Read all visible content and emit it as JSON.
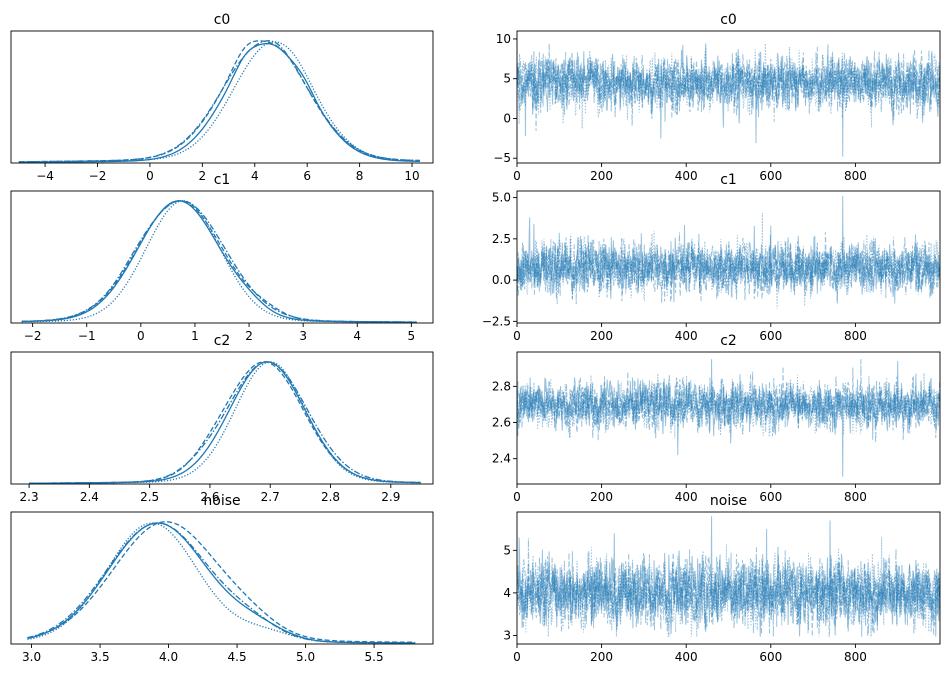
{
  "figure": {
    "color": "#1f77b4",
    "chain_styles": [
      "solid",
      "dashed",
      "dotted",
      "dashdot"
    ]
  },
  "chart_data": [
    {
      "type": "line",
      "role": "density",
      "variable": "c0",
      "title": "c0",
      "xlim": [
        -5.3,
        10.8
      ],
      "ylim": [
        0,
        1.08
      ],
      "xticks": [
        -4,
        -2,
        0,
        2,
        4,
        6,
        8,
        10
      ],
      "xtick_labels": [
        "−4",
        "−2",
        "0",
        "2",
        "4",
        "6",
        "8",
        "10"
      ],
      "yticks": [],
      "grid": false,
      "range": [
        -5.0,
        10.3
      ],
      "chains": [
        {
          "style": "solid",
          "mu": 4.5,
          "sigma": 1.55,
          "baseline": 0.02,
          "bumps": [
            [
              3.6,
              0.35,
              0.05
            ],
            [
              5.9,
              0.35,
              0.04
            ]
          ]
        },
        {
          "style": "dashed",
          "mu": 4.4,
          "sigma": 1.6,
          "baseline": 0.03,
          "bumps": [
            [
              3.6,
              0.4,
              0.07
            ],
            [
              5.4,
              0.4,
              0.02
            ]
          ]
        },
        {
          "style": "dotted",
          "mu": 4.7,
          "sigma": 1.5,
          "baseline": 0.03,
          "bumps": [
            [
              5.6,
              0.5,
              0.03
            ]
          ]
        },
        {
          "style": "dashdot",
          "mu": 4.4,
          "sigma": 1.62,
          "baseline": 0.03,
          "bumps": [
            [
              4.9,
              0.4,
              0.03
            ]
          ]
        }
      ]
    },
    {
      "type": "line",
      "role": "trace",
      "variable": "c0",
      "title": "c0",
      "xlim": [
        0,
        1000
      ],
      "ylim": [
        -5.6,
        11
      ],
      "xticks": [
        0,
        200,
        400,
        600,
        800
      ],
      "xtick_labels": [
        "0",
        "200",
        "400",
        "600",
        "800"
      ],
      "yticks": [
        -5,
        0,
        5,
        10
      ],
      "ytick_labels": [
        "−5",
        "0",
        "5",
        "10"
      ],
      "grid": false,
      "draws": 1000,
      "trace": {
        "mean": 4.5,
        "sd": 1.6,
        "min": -4.8,
        "max": 10.3,
        "outliers": [
          [
            770,
            -4.8
          ],
          [
            565,
            -3.1
          ],
          [
            20,
            -2.2
          ],
          [
            340,
            -2.5
          ]
        ]
      }
    },
    {
      "type": "line",
      "role": "density",
      "variable": "c1",
      "title": "c1",
      "xlim": [
        -2.4,
        5.4
      ],
      "ylim": [
        0,
        1.08
      ],
      "xticks": [
        -2,
        -1,
        0,
        1,
        2,
        3,
        4,
        5
      ],
      "xtick_labels": [
        "−2",
        "−1",
        "0",
        "1",
        "2",
        "3",
        "4",
        "5"
      ],
      "yticks": [],
      "grid": false,
      "range": [
        -2.2,
        5.1
      ],
      "chains": [
        {
          "style": "solid",
          "mu": 0.7,
          "sigma": 0.75,
          "baseline": 0.02,
          "bumps": [
            [
              2.0,
              0.3,
              0.04
            ]
          ]
        },
        {
          "style": "dashed",
          "mu": 0.72,
          "sigma": 0.78,
          "baseline": 0.02,
          "bumps": [
            [
              2.3,
              0.3,
              0.04
            ]
          ]
        },
        {
          "style": "dotted",
          "mu": 0.78,
          "sigma": 0.68,
          "baseline": 0.02,
          "bumps": []
        },
        {
          "style": "dashdot",
          "mu": 0.75,
          "sigma": 0.8,
          "baseline": 0.02,
          "bumps": [
            [
              -0.1,
              0.3,
              0.03
            ]
          ]
        }
      ]
    },
    {
      "type": "line",
      "role": "trace",
      "variable": "c1",
      "title": "c1",
      "xlim": [
        0,
        1000
      ],
      "ylim": [
        -2.6,
        5.4
      ],
      "xticks": [
        0,
        200,
        400,
        600,
        800
      ],
      "xtick_labels": [
        "0",
        "200",
        "400",
        "600",
        "800"
      ],
      "yticks": [
        -2.5,
        0.0,
        2.5,
        5.0
      ],
      "ytick_labels": [
        "−2.5",
        "0.0",
        "2.5",
        "5.0"
      ],
      "grid": false,
      "draws": 1000,
      "trace": {
        "mean": 0.75,
        "sd": 0.75,
        "min": -2.2,
        "max": 5.1,
        "outliers": [
          [
            770,
            5.1
          ],
          [
            30,
            3.8
          ],
          [
            40,
            3.4
          ],
          [
            600,
            3.3
          ]
        ]
      }
    },
    {
      "type": "line",
      "role": "density",
      "variable": "c2",
      "title": "c2",
      "xlim": [
        2.27,
        2.97
      ],
      "ylim": [
        0,
        1.08
      ],
      "xticks": [
        2.3,
        2.4,
        2.5,
        2.6,
        2.7,
        2.8,
        2.9
      ],
      "xtick_labels": [
        "2.3",
        "2.4",
        "2.5",
        "2.6",
        "2.7",
        "2.8",
        "2.9"
      ],
      "yticks": [],
      "grid": false,
      "range": [
        2.3,
        2.95
      ],
      "chains": [
        {
          "style": "solid",
          "mu": 2.695,
          "sigma": 0.062,
          "baseline": 0.02,
          "bumps": []
        },
        {
          "style": "dashed",
          "mu": 2.69,
          "sigma": 0.064,
          "baseline": 0.02,
          "bumps": [
            [
              2.6,
              0.03,
              0.04
            ]
          ]
        },
        {
          "style": "dotted",
          "mu": 2.7,
          "sigma": 0.058,
          "baseline": 0.02,
          "bumps": []
        },
        {
          "style": "dashdot",
          "mu": 2.695,
          "sigma": 0.066,
          "baseline": 0.02,
          "bumps": [
            [
              2.58,
              0.03,
              0.03
            ]
          ]
        }
      ]
    },
    {
      "type": "line",
      "role": "trace",
      "variable": "c2",
      "title": "c2",
      "xlim": [
        0,
        1000
      ],
      "ylim": [
        2.26,
        2.99
      ],
      "xticks": [
        0,
        200,
        400,
        600,
        800
      ],
      "xtick_labels": [
        "0",
        "200",
        "400",
        "600",
        "800"
      ],
      "yticks": [
        2.4,
        2.6,
        2.8
      ],
      "ytick_labels": [
        "2.4",
        "2.6",
        "2.8"
      ],
      "grid": false,
      "draws": 1000,
      "trace": {
        "mean": 2.695,
        "sd": 0.062,
        "min": 2.3,
        "max": 2.95,
        "outliers": [
          [
            770,
            2.3
          ],
          [
            380,
            2.42
          ],
          [
            460,
            2.95
          ],
          [
            900,
            2.94
          ]
        ]
      }
    },
    {
      "type": "line",
      "role": "density",
      "variable": "noise",
      "title": "noise",
      "xlim": [
        2.85,
        5.93
      ],
      "ylim": [
        0,
        1.08
      ],
      "xticks": [
        3.0,
        3.5,
        4.0,
        4.5,
        5.0,
        5.5
      ],
      "xtick_labels": [
        "3.0",
        "3.5",
        "4.0",
        "4.5",
        "5.0",
        "5.5"
      ],
      "yticks": [],
      "grid": false,
      "range": [
        2.97,
        5.8
      ],
      "chains": [
        {
          "style": "solid",
          "mu": 3.92,
          "sigma": 0.36,
          "baseline": 0.02,
          "bumps": [
            [
              4.65,
              0.2,
              0.1
            ]
          ]
        },
        {
          "style": "dashed",
          "mu": 3.98,
          "sigma": 0.38,
          "baseline": 0.03,
          "bumps": [
            [
              4.6,
              0.2,
              0.08
            ]
          ]
        },
        {
          "style": "dotted",
          "mu": 3.88,
          "sigma": 0.33,
          "baseline": 0.02,
          "bumps": [
            [
              4.7,
              0.2,
              0.08
            ]
          ]
        },
        {
          "style": "dashdot",
          "mu": 3.92,
          "sigma": 0.37,
          "baseline": 0.02,
          "bumps": [
            [
              4.6,
              0.2,
              0.1
            ]
          ]
        }
      ]
    },
    {
      "type": "line",
      "role": "trace",
      "variable": "noise",
      "title": "noise",
      "xlim": [
        0,
        1000
      ],
      "ylim": [
        2.8,
        5.9
      ],
      "xticks": [
        0,
        200,
        400,
        600,
        800
      ],
      "xtick_labels": [
        "0",
        "200",
        "400",
        "600",
        "800"
      ],
      "yticks": [
        3,
        4,
        5
      ],
      "ytick_labels": [
        "3",
        "4",
        "5"
      ],
      "grid": false,
      "draws": 1000,
      "trace": {
        "mean": 4.0,
        "sd": 0.38,
        "min": 2.97,
        "max": 5.8,
        "outliers": [
          [
            460,
            5.8
          ],
          [
            740,
            5.7
          ],
          [
            590,
            5.5
          ],
          [
            230,
            5.4
          ],
          [
            5,
            5.3
          ]
        ]
      }
    }
  ]
}
